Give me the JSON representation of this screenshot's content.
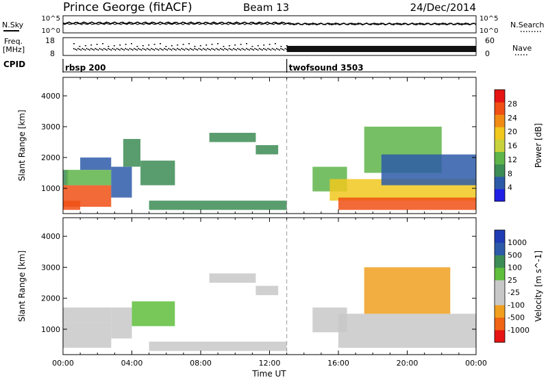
{
  "header": {
    "station": "Prince George (fitACF)",
    "beam": "Beam 13",
    "date": "24/Dec/2014"
  },
  "strip_labels": {
    "nsky": "N.Sky",
    "nsearch": "N.Search",
    "freq_line1": "Freq.",
    "freq_line2": "[MHz]",
    "nave": "Nave",
    "cpid": "CPID",
    "noise_ticks_left": [
      "10^5",
      "10^0"
    ],
    "noise_ticks_right": [
      "10^5",
      "10^0"
    ],
    "freq_ticks": [
      "18",
      "8"
    ],
    "nave_ticks": [
      "60",
      "0"
    ]
  },
  "cpid_labels": [
    {
      "name": "rbsp 200",
      "start_hour": 0
    },
    {
      "name": "twofsound 3503",
      "start_hour": 13
    }
  ],
  "colors": {
    "power": [
      "#1f1fe6",
      "#2d5aa8",
      "#3c8c55",
      "#5fb44a",
      "#c8d23c",
      "#f0c81e",
      "#f08c14",
      "#f05014",
      "#e61414"
    ],
    "velocity": [
      "#e61414",
      "#f06414",
      "#f0a01e",
      "#c8c8c8",
      "#c8c8c8",
      "#5fbe3c",
      "#3c8c55",
      "#2d5aa8",
      "#1f3cb4"
    ]
  },
  "chart_data": [
    {
      "type": "heatmap",
      "title": "Power",
      "xlabel": "",
      "ylabel": "Slant Range [km]",
      "x_ticks": [
        "00:00",
        "04:00",
        "08:00",
        "12:00",
        "16:00",
        "20:00",
        "00:00"
      ],
      "xlim_hours": [
        0,
        24
      ],
      "y_ticks": [
        1000,
        2000,
        3000,
        4000
      ],
      "ylim": [
        180,
        4600
      ],
      "colorbar_label": "Power [dB]",
      "colorbar_ticks": [
        "4",
        "8",
        "12",
        "16",
        "20",
        "24",
        "28"
      ],
      "colorbar_range": [
        0,
        32
      ],
      "regions": [
        {
          "hours": [
            0.0,
            0.3
          ],
          "range": [
            1100,
            1600
          ],
          "value": 8
        },
        {
          "hours": [
            0.0,
            1.0
          ],
          "range": [
            300,
            600
          ],
          "value": 28
        },
        {
          "hours": [
            0.0,
            2.8
          ],
          "range": [
            400,
            1100
          ],
          "value": 26
        },
        {
          "hours": [
            0.2,
            2.8
          ],
          "range": [
            1100,
            1600
          ],
          "value": 14
        },
        {
          "hours": [
            1.0,
            2.8
          ],
          "range": [
            1600,
            2000
          ],
          "value": 6
        },
        {
          "hours": [
            2.8,
            4.0
          ],
          "range": [
            700,
            1700
          ],
          "value": 5
        },
        {
          "hours": [
            3.5,
            4.5
          ],
          "range": [
            1700,
            2600
          ],
          "value": 10
        },
        {
          "hours": [
            4.5,
            6.5
          ],
          "range": [
            1100,
            1900
          ],
          "value": 8
        },
        {
          "hours": [
            5.0,
            13.0
          ],
          "range": [
            300,
            600
          ],
          "value": 8
        },
        {
          "hours": [
            8.5,
            11.2
          ],
          "range": [
            2500,
            2800
          ],
          "value": 10
        },
        {
          "hours": [
            11.2,
            12.5
          ],
          "range": [
            2100,
            2400
          ],
          "value": 8
        },
        {
          "hours": [
            14.5,
            16.5
          ],
          "range": [
            900,
            1700
          ],
          "value": 12
        },
        {
          "hours": [
            15.5,
            24.0
          ],
          "range": [
            600,
            1300
          ],
          "value": 18
        },
        {
          "hours": [
            16.0,
            24.0
          ],
          "range": [
            300,
            700
          ],
          "value": 26
        },
        {
          "hours": [
            17.5,
            22.0
          ],
          "range": [
            1500,
            3000
          ],
          "value": 12
        },
        {
          "hours": [
            18.5,
            24.0
          ],
          "range": [
            1100,
            2100
          ],
          "value": 6
        }
      ]
    },
    {
      "type": "heatmap",
      "title": "Velocity",
      "xlabel": "Time UT",
      "ylabel": "Slant Range [km]",
      "x_ticks": [
        "00:00",
        "04:00",
        "08:00",
        "12:00",
        "16:00",
        "20:00",
        "00:00"
      ],
      "xlim_hours": [
        0,
        24
      ],
      "y_ticks": [
        1000,
        2000,
        3000,
        4000
      ],
      "ylim": [
        180,
        4600
      ],
      "colorbar_label": "Velocity [m s^-1]",
      "colorbar_ticks": [
        "-1000",
        "-500",
        "-100",
        "-25",
        "25",
        "100",
        "500",
        "1000"
      ],
      "colorbar_range": [
        -1500,
        1500
      ],
      "regions": [
        {
          "hours": [
            0.0,
            2.8
          ],
          "range": [
            400,
            1200
          ],
          "value": -180
        },
        {
          "hours": [
            0.0,
            2.8
          ],
          "range": [
            1200,
            1700
          ],
          "value": 0
        },
        {
          "hours": [
            2.8,
            4.0
          ],
          "range": [
            700,
            1700
          ],
          "value": -100
        },
        {
          "hours": [
            4.0,
            6.5
          ],
          "range": [
            1100,
            1900
          ],
          "value": 300
        },
        {
          "hours": [
            5.0,
            13.0
          ],
          "range": [
            300,
            600
          ],
          "value": -100
        },
        {
          "hours": [
            8.5,
            11.2
          ],
          "range": [
            2500,
            2800
          ],
          "value": 0
        },
        {
          "hours": [
            11.2,
            12.5
          ],
          "range": [
            2100,
            2400
          ],
          "value": 0
        },
        {
          "hours": [
            14.5,
            16.5
          ],
          "range": [
            900,
            1700
          ],
          "value": 0
        },
        {
          "hours": [
            16.0,
            24.0
          ],
          "range": [
            400,
            1500
          ],
          "value": 0
        },
        {
          "hours": [
            17.5,
            22.5
          ],
          "range": [
            1500,
            3000
          ],
          "value": -600
        }
      ]
    }
  ]
}
